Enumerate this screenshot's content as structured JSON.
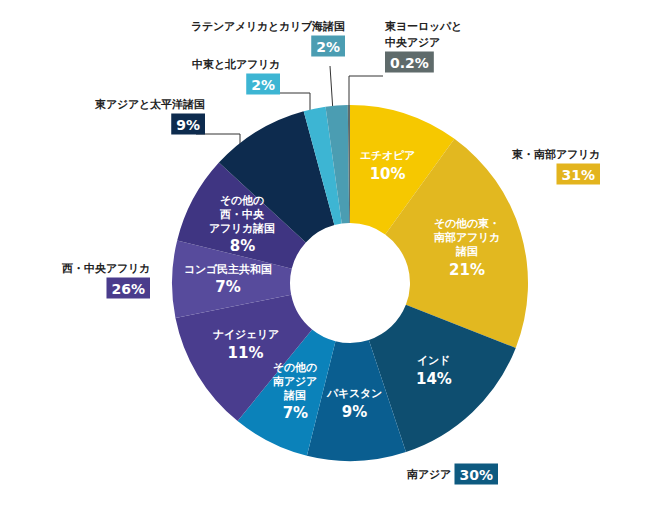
{
  "chart_data": {
    "type": "donut",
    "categories": [
      "エチオピア",
      "その他の東・\n南部アフリカ\n諸国",
      "インド",
      "パキスタン",
      "その他の\n南アジア\n諸国",
      "ナイジェリア",
      "コンゴ民主共和国",
      "その他の\n西・中央\nアフリカ諸国",
      "東アジアと太平洋諸国",
      "中東と北アフリカ",
      "ラテンアメリカとカリブ海諸国",
      "東ヨーロッパと\n中央アジア"
    ],
    "values": [
      10,
      21,
      14,
      9,
      7,
      11,
      7,
      8,
      9,
      2,
      2,
      0.2
    ],
    "value_labels": [
      "10%",
      "21%",
      "14%",
      "9%",
      "7%",
      "11%",
      "7%",
      "8%",
      "9%",
      "2%",
      "2%",
      "0.2%"
    ],
    "colors": [
      "#F6C800",
      "#E2B820",
      "#0E4E70",
      "#0A5E90",
      "#0B82BA",
      "#4A3D8E",
      "#574B9C",
      "#3F3582",
      "#0D2B4E",
      "#3DB5D3",
      "#4B9DB2",
      "#5F6B6B"
    ],
    "data_labels": true,
    "groups": [
      {
        "name": "東・南部アフリカ",
        "value": 31,
        "value_label": "31%",
        "color": "#E3B41E",
        "members": [
          "エチオピア",
          "その他の東・\n南部アフリカ\n諸国"
        ]
      },
      {
        "name": "南アジア",
        "value": 30,
        "value_label": "30%",
        "color": "#0E5A80",
        "members": [
          "インド",
          "パキスタン",
          "その他の\n南アジア\n諸国"
        ]
      },
      {
        "name": "西・中央アフリカ",
        "value": 26,
        "value_label": "26%",
        "color": "#4A3C8C",
        "members": [
          "ナイジェリア",
          "コンゴ民主共和国",
          "その他の\n西・中央\nアフリカ諸国"
        ]
      }
    ]
  }
}
